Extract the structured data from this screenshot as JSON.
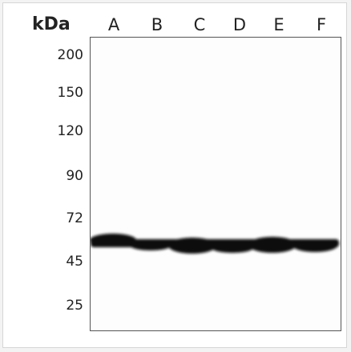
{
  "header": {
    "unit_label": "kDa"
  },
  "lanes": [
    "A",
    "B",
    "C",
    "D",
    "E",
    "F"
  ],
  "markers": [
    "200",
    "150",
    "120",
    "90",
    "72",
    "45",
    "25"
  ],
  "colors": {
    "band": "#111111",
    "border": "#555555",
    "background": "#ffffff"
  }
}
